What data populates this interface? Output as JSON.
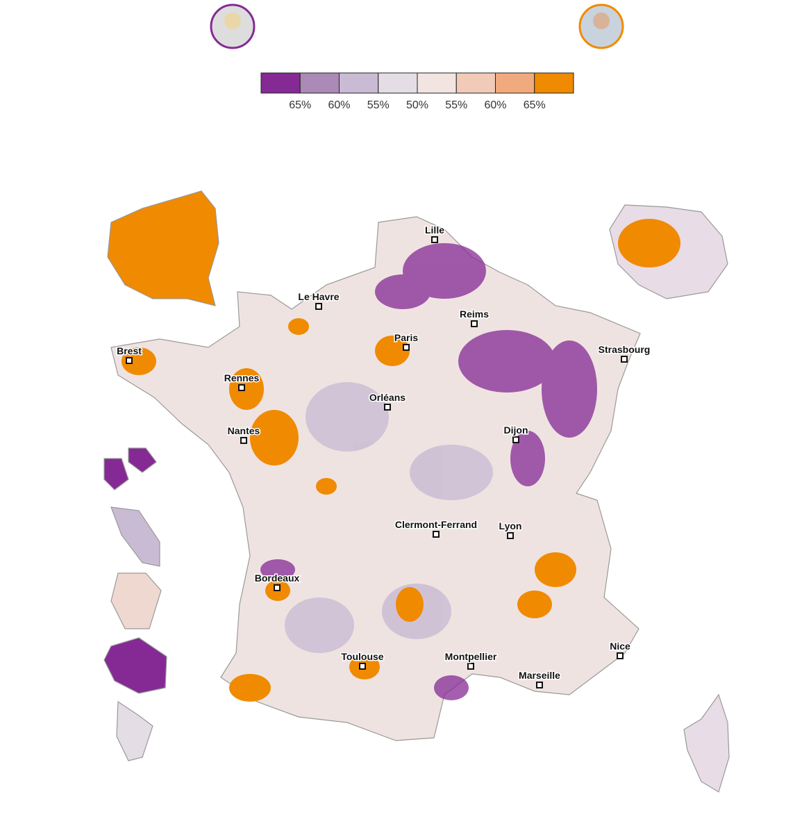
{
  "legend": {
    "labels": [
      "65%",
      "60%",
      "55%",
      "50%",
      "55%",
      "60%",
      "65%"
    ],
    "colors": [
      "#852a94",
      "#ab8ab7",
      "#c9bbd3",
      "#e4dde6",
      "#f1e4e1",
      "#f1cab8",
      "#f1aa7e",
      "#f08a00"
    ]
  },
  "cities": [
    {
      "name": "Lille"
    },
    {
      "name": "Le Havre"
    },
    {
      "name": "Reims"
    },
    {
      "name": "Paris"
    },
    {
      "name": "Brest"
    },
    {
      "name": "Strasbourg"
    },
    {
      "name": "Rennes"
    },
    {
      "name": "Orléans"
    },
    {
      "name": "Nantes"
    },
    {
      "name": "Dijon"
    },
    {
      "name": "Clermont-Ferrand"
    },
    {
      "name": "Lyon"
    },
    {
      "name": "Bordeaux"
    },
    {
      "name": "Toulouse"
    },
    {
      "name": "Montpellier"
    },
    {
      "name": "Nice"
    },
    {
      "name": "Marseille"
    }
  ]
}
